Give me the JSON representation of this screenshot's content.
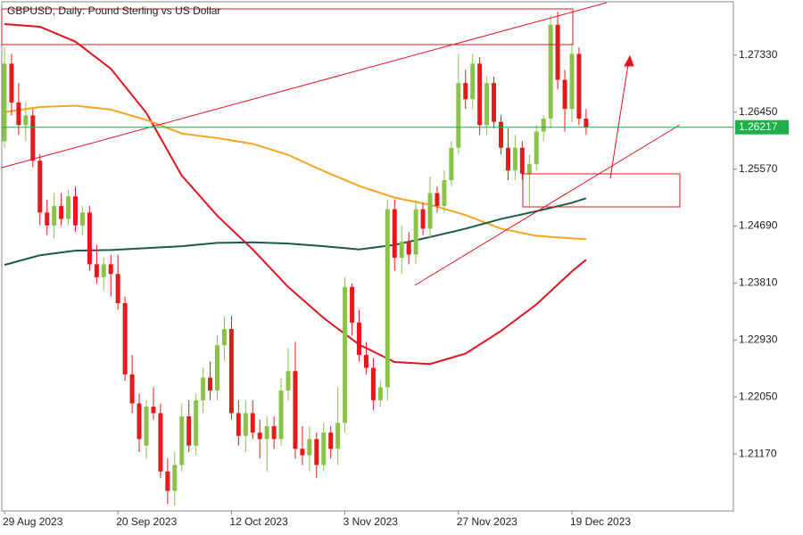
{
  "chart_data": {
    "type": "candlestick",
    "title": "GBPUSD, Daily:  Pound Sterling vs US Dollar",
    "categories": [
      "29 Aug 2023",
      null,
      null,
      null,
      null,
      null,
      null,
      null,
      null,
      null,
      null,
      null,
      null,
      null,
      null,
      null,
      "20 Sep 2023",
      null,
      null,
      null,
      null,
      null,
      null,
      null,
      null,
      null,
      null,
      null,
      null,
      null,
      null,
      null,
      "12 Oct 2023",
      null,
      null,
      null,
      null,
      null,
      null,
      null,
      null,
      null,
      null,
      null,
      null,
      null,
      null,
      null,
      "3 Nov 2023",
      null,
      null,
      null,
      null,
      null,
      null,
      null,
      null,
      null,
      null,
      null,
      null,
      null,
      null,
      null,
      "27 Nov 2023",
      null,
      null,
      null,
      null,
      null,
      null,
      null,
      null,
      null,
      null,
      null,
      null,
      null,
      null,
      null,
      "19 Dec 2023",
      null,
      null
    ],
    "open": [
      1.26,
      1.272,
      1.266,
      1.2625,
      1.264,
      1.257,
      1.249,
      1.247,
      1.25,
      1.248,
      1.2515,
      1.247,
      1.249,
      1.241,
      1.239,
      1.241,
      1.2395,
      1.235,
      1.224,
      1.2195,
      1.213,
      1.219,
      1.218,
      1.209,
      1.206,
      1.21,
      1.2175,
      1.213,
      1.22,
      1.2235,
      1.2215,
      1.2285,
      1.231,
      1.218,
      1.2145,
      1.218,
      1.215,
      1.214,
      1.216,
      1.214,
      1.2215,
      1.2245,
      1.2125,
      1.2115,
      1.214,
      1.21,
      1.215,
      1.2125,
      1.2165,
      1.2375,
      1.232,
      1.227,
      1.225,
      1.22,
      1.222,
      1.2495,
      1.242,
      1.2445,
      1.2425,
      1.2495,
      1.2465,
      1.252,
      1.25,
      1.254,
      1.259,
      1.269,
      1.2665,
      1.272,
      1.2625,
      1.269,
      1.263,
      1.259,
      1.2555,
      1.259,
      1.255,
      1.2565,
      1.2615,
      1.2635,
      1.278,
      1.2695,
      1.265,
      1.2735,
      1.2635
    ],
    "high": [
      1.2745,
      1.2735,
      1.269,
      1.266,
      1.265,
      1.258,
      1.251,
      1.252,
      1.252,
      1.2525,
      1.253,
      1.25,
      1.25,
      1.244,
      1.242,
      1.2425,
      1.2425,
      1.236,
      1.227,
      1.221,
      1.22,
      1.222,
      1.2195,
      1.211,
      1.212,
      1.2195,
      1.22,
      1.221,
      1.225,
      1.226,
      1.23,
      1.233,
      1.233,
      1.22,
      1.22,
      1.22,
      1.217,
      1.2175,
      1.2175,
      1.2235,
      1.228,
      1.229,
      1.216,
      1.216,
      1.215,
      1.2165,
      1.216,
      1.222,
      1.239,
      1.238,
      1.234,
      1.229,
      1.2265,
      1.223,
      1.251,
      1.251,
      1.247,
      1.246,
      1.251,
      1.2505,
      1.2545,
      1.253,
      1.2555,
      1.26,
      1.2735,
      1.271,
      1.2735,
      1.273,
      1.27,
      1.27,
      1.264,
      1.262,
      1.261,
      1.26,
      1.258,
      1.2625,
      1.264,
      1.2795,
      1.28,
      1.271,
      1.275,
      1.2745,
      1.265
    ],
    "low": [
      1.259,
      1.264,
      1.261,
      1.26,
      1.256,
      1.247,
      1.2455,
      1.245,
      1.247,
      1.247,
      1.246,
      1.2455,
      1.24,
      1.238,
      1.237,
      1.236,
      1.234,
      1.223,
      1.218,
      1.212,
      1.211,
      1.217,
      1.208,
      1.204,
      1.2037,
      1.209,
      1.212,
      1.2115,
      1.218,
      1.22,
      1.22,
      1.226,
      1.217,
      1.213,
      1.212,
      1.214,
      1.211,
      1.209,
      1.2125,
      1.213,
      1.22,
      1.211,
      1.21,
      1.209,
      1.208,
      1.209,
      1.211,
      1.21,
      1.215,
      1.23,
      1.226,
      1.224,
      1.2185,
      1.219,
      1.22,
      1.24,
      1.2395,
      1.241,
      1.241,
      1.2455,
      1.245,
      1.249,
      1.249,
      1.253,
      1.258,
      1.265,
      1.265,
      1.261,
      1.261,
      1.262,
      1.258,
      1.254,
      1.254,
      1.254,
      1.25,
      1.2555,
      1.26,
      1.262,
      1.268,
      1.2615,
      1.263,
      1.2625,
      1.261
    ],
    "close": [
      1.272,
      1.266,
      1.2625,
      1.264,
      1.257,
      1.249,
      1.247,
      1.25,
      1.248,
      1.2515,
      1.247,
      1.249,
      1.241,
      1.239,
      1.241,
      1.2395,
      1.235,
      1.224,
      1.2195,
      1.214,
      1.219,
      1.218,
      1.209,
      1.206,
      1.21,
      1.2175,
      1.213,
      1.22,
      1.2235,
      1.2215,
      1.2285,
      1.231,
      1.218,
      1.2145,
      1.218,
      1.215,
      1.214,
      1.216,
      1.214,
      1.2215,
      1.2245,
      1.2125,
      1.2115,
      1.214,
      1.21,
      1.215,
      1.2125,
      1.2165,
      1.2375,
      1.232,
      1.227,
      1.225,
      1.22,
      1.222,
      1.2495,
      1.242,
      1.2445,
      1.2425,
      1.2495,
      1.2465,
      1.252,
      1.25,
      1.254,
      1.259,
      1.269,
      1.2665,
      1.272,
      1.2625,
      1.269,
      1.263,
      1.259,
      1.2555,
      1.259,
      1.255,
      1.2565,
      1.2615,
      1.2635,
      1.278,
      1.2695,
      1.265,
      1.2735,
      1.2635,
      1.26217
    ],
    "up_color": "#8bc34a",
    "down_color": "#e31a1c",
    "lines": [
      {
        "color": "#e0141e",
        "x": [
          0,
          5,
          10,
          15,
          20,
          25,
          30,
          35,
          40,
          45,
          50,
          55,
          60,
          65,
          70,
          75,
          80,
          82
        ],
        "values": [
          1.2781,
          1.2777,
          1.2754,
          1.2712,
          1.2644,
          1.2547,
          1.2485,
          1.2433,
          1.2375,
          1.2327,
          1.2286,
          1.2259,
          1.2256,
          1.2272,
          1.2307,
          1.2348,
          1.2399,
          1.2417
        ]
      },
      {
        "color": "#f5a623",
        "x": [
          0,
          5,
          10,
          15,
          20,
          25,
          30,
          35,
          40,
          45,
          50,
          55,
          60,
          65,
          70,
          75,
          80,
          82
        ],
        "values": [
          1.2645,
          1.2653,
          1.2655,
          1.2649,
          1.2633,
          1.2612,
          1.2605,
          1.2596,
          1.2579,
          1.2554,
          1.2531,
          1.2513,
          1.2502,
          1.2486,
          1.2465,
          1.2454,
          1.245,
          1.2449
        ]
      },
      {
        "color": "#1f5a4a",
        "x": [
          0,
          5,
          10,
          15,
          20,
          25,
          30,
          35,
          40,
          45,
          50,
          55,
          60,
          65,
          70,
          75,
          80,
          82
        ],
        "values": [
          1.2409,
          1.2424,
          1.2431,
          1.2432,
          1.2435,
          1.2438,
          1.2443,
          1.2444,
          1.2442,
          1.2438,
          1.2433,
          1.244,
          1.2452,
          1.2465,
          1.248,
          1.2492,
          1.2505,
          1.2512
        ]
      }
    ],
    "current_price": 1.26217,
    "current_price_color": "#1fb04a",
    "ylim": [
      1.2029,
      1.28155
    ],
    "yticks": [
      {
        "value": 1.2117,
        "label": "1.21170"
      },
      {
        "value": 1.2205,
        "label": "1.22050"
      },
      {
        "value": 1.2293,
        "label": "1.22930"
      },
      {
        "value": 1.2381,
        "label": "1.23810"
      },
      {
        "value": 1.2469,
        "label": "1.24690"
      },
      {
        "value": 1.2557,
        "label": "1.25570"
      },
      {
        "value": 1.2645,
        "label": "1.26450"
      },
      {
        "value": 1.2733,
        "label": "1.27330"
      }
    ]
  }
}
